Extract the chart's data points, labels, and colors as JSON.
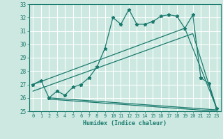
{
  "xlabel": "Humidex (Indice chaleur)",
  "xlim": [
    -0.5,
    23.5
  ],
  "ylim": [
    25,
    33
  ],
  "yticks": [
    25,
    26,
    27,
    28,
    29,
    30,
    31,
    32,
    33
  ],
  "xticks": [
    0,
    1,
    2,
    3,
    4,
    5,
    6,
    7,
    8,
    9,
    10,
    11,
    12,
    13,
    14,
    15,
    16,
    17,
    18,
    19,
    20,
    21,
    22,
    23
  ],
  "bg_color": "#cce8e0",
  "line_color": "#1a7a6e",
  "main_x": [
    0,
    1,
    2,
    3,
    4,
    5,
    6,
    7,
    8,
    9,
    10,
    11,
    12,
    13,
    14,
    15,
    16,
    17,
    18,
    19,
    20,
    21,
    22,
    23
  ],
  "main_y": [
    27.0,
    27.3,
    26.0,
    26.5,
    26.2,
    26.8,
    27.0,
    27.5,
    28.3,
    29.7,
    32.0,
    31.5,
    32.6,
    31.5,
    31.5,
    31.7,
    32.1,
    32.2,
    32.1,
    31.2,
    32.2,
    27.5,
    27.1,
    25.2
  ],
  "upper_line_x": [
    0,
    19,
    23
  ],
  "upper_line_y": [
    27.0,
    31.2,
    25.2
  ],
  "mid_line_x": [
    0,
    20,
    23
  ],
  "mid_line_y": [
    26.5,
    30.8,
    25.1
  ],
  "lower_line_x": [
    2,
    23
  ],
  "lower_line_y": [
    26.0,
    25.1
  ],
  "bottom_line_x": [
    2,
    23
  ],
  "bottom_line_y": [
    25.9,
    25.0
  ]
}
